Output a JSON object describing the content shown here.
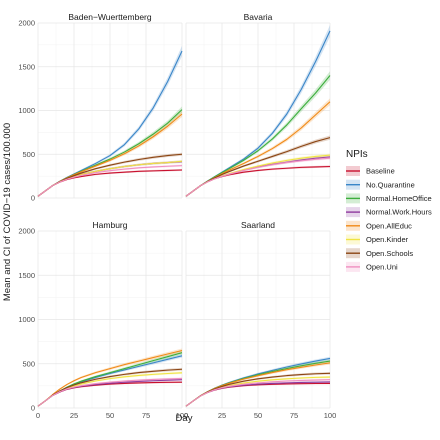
{
  "chart_data": {
    "type": "line",
    "y_label": "Mean and CI of COVID−19 cases/100.000",
    "x_label": "Day",
    "x_range": [
      0,
      100
    ],
    "y_range": [
      0,
      2000
    ],
    "x_ticks": [
      "0",
      "25",
      "50",
      "75",
      "100"
    ],
    "y_ticks": [
      "0",
      "500",
      "1000",
      "1500",
      "2000"
    ],
    "grid": true,
    "legend": {
      "title": "NPIs",
      "placement": "right",
      "entries": [
        "Baseline",
        "No.Quarantine",
        "Normal.HomeOffice",
        "Normal.Work.Hours",
        "Open.AllEduc",
        "Open.Kinder",
        "Open.Schools",
        "Open.Uni"
      ]
    },
    "series_colors": {
      "Baseline": "#c8102e",
      "No.Quarantine": "#3a86c8",
      "Normal.HomeOffice": "#3cae3c",
      "Normal.Work.Hours": "#8e3a9e",
      "Open.AllEduc": "#f08a17",
      "Open.Kinder": "#f0e442",
      "Open.Schools": "#8b4513",
      "Open.Uni": "#f08fc0"
    },
    "panels": [
      {
        "title": "Baden−Wuerttemberg",
        "x": [
          0,
          5,
          10,
          15,
          20,
          25,
          30,
          40,
          50,
          60,
          70,
          80,
          90,
          100
        ],
        "series": [
          {
            "name": "Baseline",
            "values": [
              20,
              80,
              140,
              180,
              210,
              230,
              245,
              270,
              285,
              295,
              305,
              310,
              315,
              320
            ]
          },
          {
            "name": "No.Quarantine",
            "values": [
              20,
              80,
              140,
              190,
              235,
              275,
              315,
              395,
              485,
              610,
              790,
              1030,
              1330,
              1680
            ]
          },
          {
            "name": "Normal.HomeOffice",
            "values": [
              20,
              80,
              140,
              188,
              230,
              268,
              305,
              375,
              445,
              525,
              620,
              730,
              855,
              1010
            ]
          },
          {
            "name": "Normal.Work.Hours",
            "values": [
              20,
              80,
              140,
              185,
              220,
              245,
              270,
              305,
              335,
              360,
              380,
              395,
              405,
              415
            ]
          },
          {
            "name": "Open.AllEduc",
            "values": [
              20,
              80,
              140,
              188,
              228,
              265,
              300,
              365,
              430,
              505,
              595,
              700,
              820,
              960
            ]
          },
          {
            "name": "Open.Kinder",
            "values": [
              20,
              80,
              140,
              184,
              218,
              245,
              268,
              305,
              335,
              360,
              380,
              395,
              405,
              420
            ]
          },
          {
            "name": "Open.Schools",
            "values": [
              20,
              80,
              140,
              186,
              224,
              255,
              285,
              335,
              375,
              410,
              440,
              465,
              485,
              500
            ]
          },
          {
            "name": "Open.Uni",
            "values": [
              20,
              80,
              140,
              182,
              214,
              238,
              258,
              290,
              312,
              330,
              345,
              355,
              363,
              370
            ]
          }
        ]
      },
      {
        "title": "Bavaria",
        "x": [
          0,
          5,
          10,
          15,
          20,
          25,
          30,
          40,
          50,
          60,
          70,
          80,
          90,
          100
        ],
        "series": [
          {
            "name": "Baseline",
            "values": [
              20,
              80,
              140,
              185,
              220,
              245,
              265,
              295,
              315,
              330,
              340,
              350,
              355,
              360
            ]
          },
          {
            "name": "No.Quarantine",
            "values": [
              20,
              80,
              140,
              195,
              245,
              295,
              345,
              445,
              570,
              740,
              960,
              1240,
              1560,
              1910
            ]
          },
          {
            "name": "Normal.HomeOffice",
            "values": [
              20,
              80,
              140,
              193,
              243,
              290,
              335,
              430,
              540,
              675,
              835,
              1020,
              1200,
              1400
            ]
          },
          {
            "name": "Normal.Work.Hours",
            "values": [
              20,
              80,
              140,
              185,
              222,
              250,
              275,
              320,
              355,
              385,
              410,
              435,
              455,
              470
            ]
          },
          {
            "name": "Open.AllEduc",
            "values": [
              20,
              80,
              140,
              190,
              235,
              278,
              318,
              395,
              475,
              565,
              670,
              800,
              950,
              1100
            ]
          },
          {
            "name": "Open.Kinder",
            "values": [
              20,
              80,
              140,
              185,
              222,
              252,
              278,
              325,
              365,
              400,
              430,
              455,
              475,
              490
            ]
          },
          {
            "name": "Open.Schools",
            "values": [
              20,
              80,
              140,
              188,
              230,
              268,
              302,
              365,
              420,
              475,
              530,
              590,
              645,
              690
            ]
          },
          {
            "name": "Open.Uni",
            "values": [
              20,
              80,
              140,
              185,
              220,
              248,
              272,
              315,
              350,
              380,
              405,
              425,
              442,
              455
            ]
          }
        ]
      },
      {
        "title": "Hamburg",
        "x": [
          0,
          5,
          10,
          15,
          20,
          25,
          30,
          40,
          50,
          60,
          70,
          80,
          90,
          100
        ],
        "series": [
          {
            "name": "Baseline",
            "values": [
              20,
              80,
              140,
              180,
              210,
              228,
              240,
              258,
              270,
              278,
              283,
              287,
              290,
              292
            ]
          },
          {
            "name": "No.Quarantine",
            "values": [
              20,
              80,
              140,
              190,
              232,
              265,
              295,
              345,
              390,
              430,
              470,
              510,
              550,
              590
            ]
          },
          {
            "name": "Normal.HomeOffice",
            "values": [
              20,
              80,
              140,
              190,
              235,
              272,
              303,
              355,
              400,
              445,
              490,
              535,
              580,
              625
            ]
          },
          {
            "name": "Normal.Work.Hours",
            "values": [
              20,
              80,
              140,
              182,
              212,
              232,
              246,
              266,
              280,
              291,
              300,
              308,
              314,
              320
            ]
          },
          {
            "name": "Open.AllEduc",
            "values": [
              20,
              80,
              150,
              212,
              265,
              308,
              345,
              400,
              445,
              490,
              530,
              570,
              610,
              650
            ]
          },
          {
            "name": "Open.Kinder",
            "values": [
              20,
              80,
              142,
              188,
              222,
              248,
              270,
              305,
              332,
              352,
              368,
              380,
              390,
              398
            ]
          },
          {
            "name": "Open.Schools",
            "values": [
              20,
              80,
              144,
              192,
              230,
              260,
              285,
              325,
              355,
              380,
              400,
              415,
              428,
              438
            ]
          },
          {
            "name": "Open.Uni",
            "values": [
              20,
              80,
              140,
              184,
              215,
              236,
              252,
              276,
              292,
              305,
              315,
              323,
              329,
              334
            ]
          }
        ]
      },
      {
        "title": "Saarland",
        "x": [
          0,
          5,
          10,
          15,
          20,
          25,
          30,
          40,
          50,
          60,
          70,
          80,
          90,
          100
        ],
        "series": [
          {
            "name": "Baseline",
            "values": [
              20,
              80,
              135,
              175,
              203,
              222,
              235,
              252,
              262,
              268,
              272,
              275,
              277,
              278
            ]
          },
          {
            "name": "No.Quarantine",
            "values": [
              20,
              80,
              138,
              185,
              225,
              258,
              288,
              340,
              385,
              425,
              463,
              498,
              530,
              560
            ]
          },
          {
            "name": "Normal.HomeOffice",
            "values": [
              20,
              80,
              138,
              184,
              223,
              255,
              284,
              333,
              375,
              412,
              446,
              477,
              505,
              530
            ]
          },
          {
            "name": "Normal.Work.Hours",
            "values": [
              20,
              80,
              135,
              176,
              205,
              225,
              239,
              258,
              270,
              278,
              284,
              289,
              292,
              295
            ]
          },
          {
            "name": "Open.AllEduc",
            "values": [
              20,
              80,
              138,
              184,
              222,
              253,
              280,
              326,
              365,
              400,
              432,
              460,
              486,
              510
            ]
          },
          {
            "name": "Open.Kinder",
            "values": [
              20,
              80,
              136,
              178,
              210,
              234,
              253,
              282,
              303,
              318,
              330,
              339,
              346,
              350
            ]
          },
          {
            "name": "Open.Schools",
            "values": [
              20,
              80,
              137,
              181,
              216,
              244,
              267,
              303,
              330,
              350,
              366,
              378,
              387,
              392
            ]
          },
          {
            "name": "Open.Uni",
            "values": [
              20,
              80,
              135,
              177,
              207,
              229,
              245,
              268,
              284,
              296,
              305,
              311,
              316,
              320
            ]
          }
        ]
      }
    ]
  }
}
